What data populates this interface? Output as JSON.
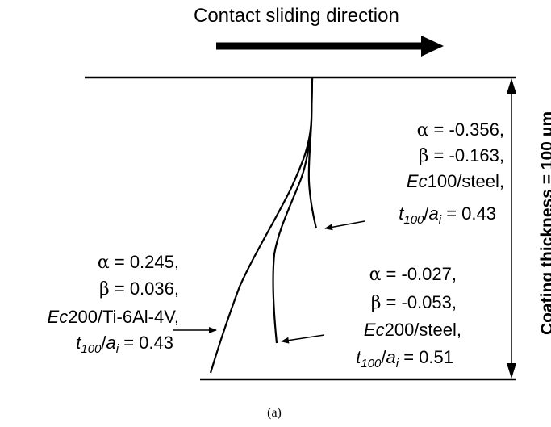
{
  "title": "Contact sliding direction",
  "thickness_label": "Coating thickness = 100 μm",
  "caption": "(a)",
  "cracks": [
    {
      "alpha_sym": "α",
      "alpha_val": " = -0.356,",
      "beta_sym": "β",
      "beta_val": " = -0.163,",
      "material_prefix": "Ec",
      "material_rest": "100/steel,",
      "ratio_t": "t",
      "ratio_t_sub": "100",
      "ratio_slash": "/",
      "ratio_a": "a",
      "ratio_a_sub": "i",
      "ratio_val": " = 0.43"
    },
    {
      "alpha_sym": "α",
      "alpha_val": " = 0.245,",
      "beta_sym": "β",
      "beta_val": " = 0.036,",
      "material_prefix": "Ec",
      "material_rest": "200/Ti-6Al-4V,",
      "ratio_t": "t",
      "ratio_t_sub": "100",
      "ratio_slash": "/",
      "ratio_a": "a",
      "ratio_a_sub": "i",
      "ratio_val": " = 0.43"
    },
    {
      "alpha_sym": "α",
      "alpha_val": " = -0.027,",
      "beta_sym": "β",
      "beta_val": " = -0.053,",
      "material_prefix": "Ec",
      "material_rest": "200/steel,",
      "ratio_t": "t",
      "ratio_t_sub": "100",
      "ratio_slash": "/",
      "ratio_a": "a",
      "ratio_a_sub": "i",
      "ratio_val": " = 0.51"
    }
  ]
}
